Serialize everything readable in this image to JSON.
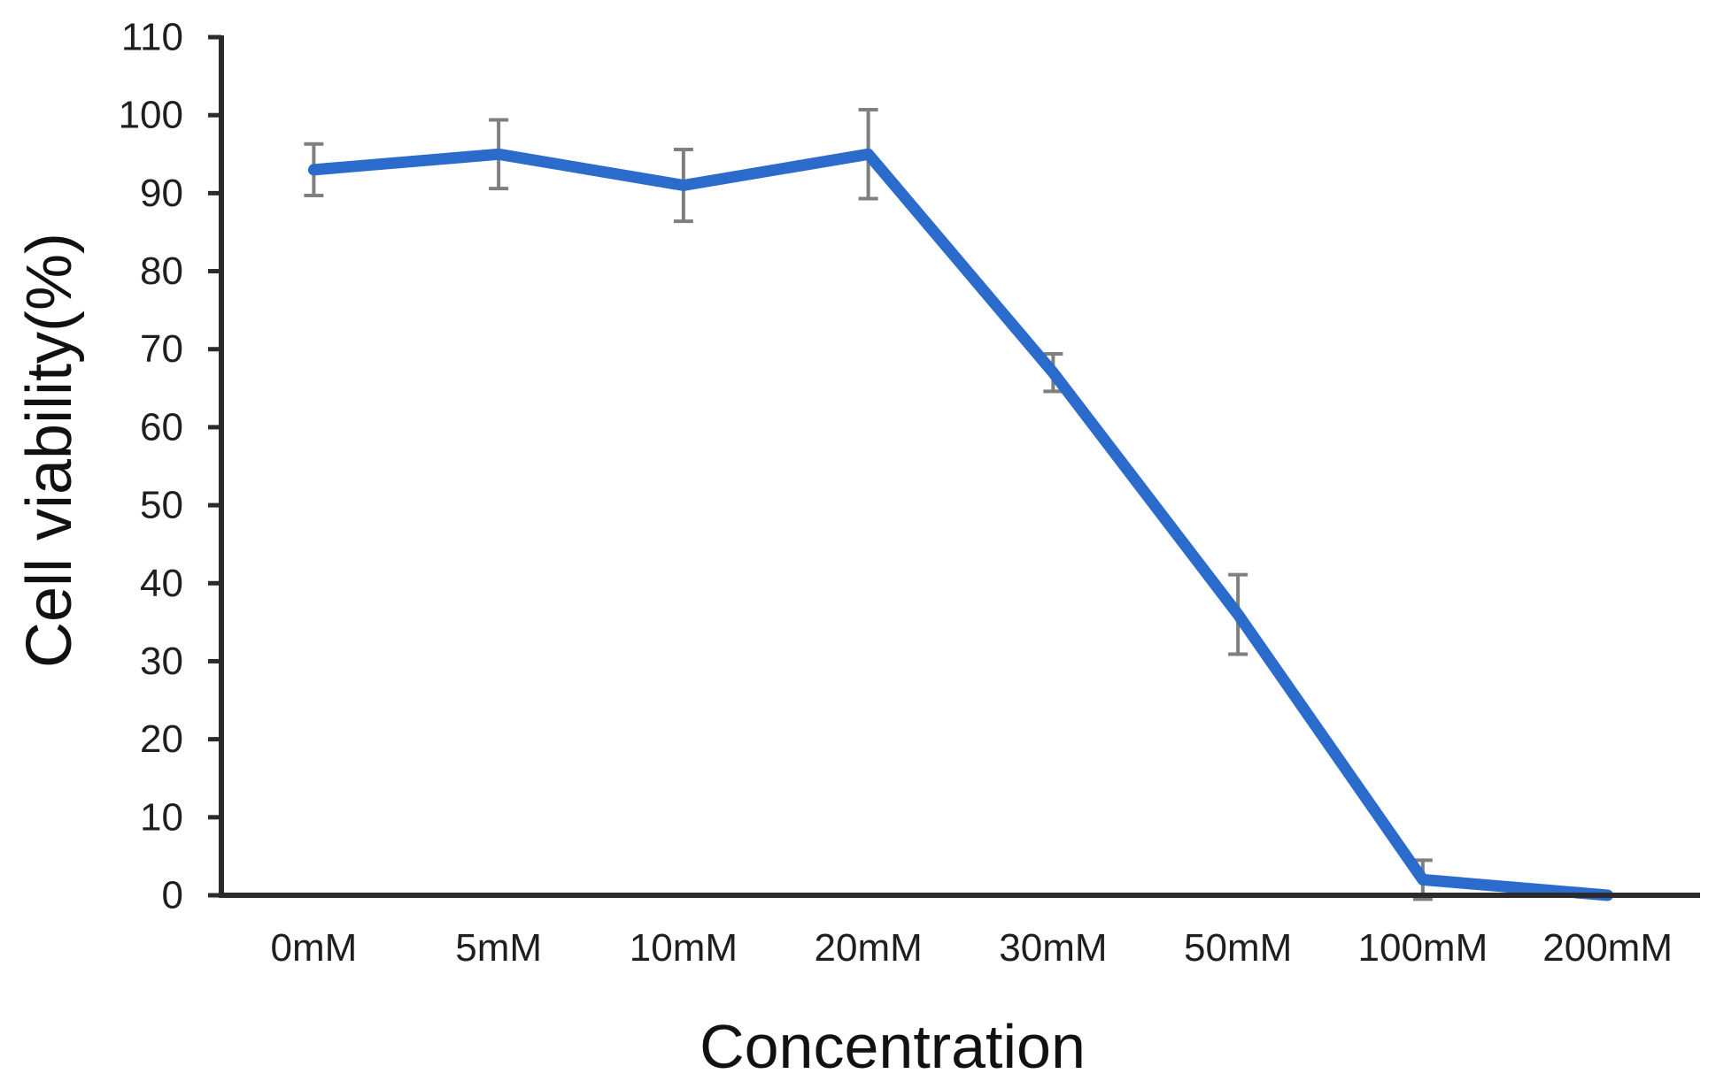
{
  "chart_data": {
    "type": "line",
    "title": "",
    "xlabel": "Concentration",
    "ylabel": "Cell viability(%)",
    "categories": [
      "0mM",
      "5mM",
      "10mM",
      "20mM",
      "30mM",
      "50mM",
      "100mM",
      "200mM"
    ],
    "series": [
      {
        "name": "Cell viability",
        "values": [
          93,
          95,
          91,
          95,
          67,
          36,
          2,
          0
        ],
        "errors": [
          3.3,
          4.4,
          4.6,
          5.7,
          2.4,
          5.1,
          2.5,
          0
        ]
      }
    ],
    "ylim": [
      0,
      110
    ],
    "yticks": [
      0,
      10,
      20,
      30,
      40,
      50,
      60,
      70,
      80,
      90,
      100,
      110
    ],
    "grid": "off",
    "legend": "none",
    "colors": {
      "line": "#2a6bcb",
      "error_bar": "#7f7f7f",
      "axis": "#2b2b2b",
      "tick_text": "#1f1f1f",
      "title_text": "#111111",
      "background": "#ffffff"
    }
  }
}
